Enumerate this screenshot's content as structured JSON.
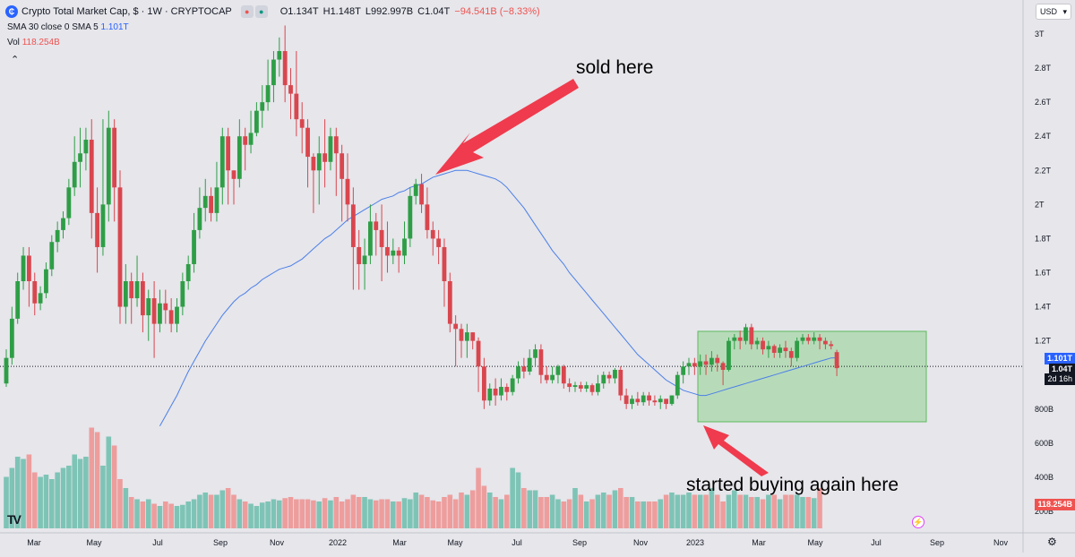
{
  "header": {
    "logo_icon": "cryptocap-logo-icon",
    "symbol": "Crypto Total Market Cap, $ · 1W · CRYPTOCAP",
    "open": "O1.134T",
    "high": "H1.148T",
    "low": "L992.997B",
    "close": "C1.04T",
    "change": "−94.541B (−8.33%)"
  },
  "indicators": {
    "sma_label": "SMA 30 close 0 SMA 5",
    "sma_value": "1.101T",
    "vol_label": "Vol",
    "vol_value": "118.254B"
  },
  "currency": "USD",
  "price_tags": {
    "sma": "1.101T",
    "close": "1.04T",
    "countdown": "2d 16h",
    "volume": "118.254B"
  },
  "annotations": {
    "top_text": "sold here",
    "bottom_text": "started buying again here"
  },
  "colors": {
    "up": "#2e9e46",
    "down": "#d9464e",
    "up_vol": "#7ec4b6",
    "down_vol": "#ee9d9d",
    "sma": "#4c7fe8",
    "arrow": "#ef3b4d",
    "box": "#8fd18f"
  },
  "chart_data": {
    "type": "candlestick",
    "title": "Crypto Total Market Cap, $ · 1W · CRYPTOCAP",
    "x_ticks": [
      "Mar",
      "May",
      "Jul",
      "Sep",
      "Nov",
      "2022",
      "Mar",
      "May",
      "Jul",
      "Sep",
      "Nov",
      "2023",
      "Mar",
      "May",
      "Jul",
      "Sep",
      "Nov"
    ],
    "y_ticks": [
      "3T",
      "2.8T",
      "2.6T",
      "2.4T",
      "2.2T",
      "2T",
      "1.8T",
      "1.6T",
      "1.4T",
      "1.2T",
      "800B",
      "600B",
      "400B",
      "200B"
    ],
    "y_range": [
      0.2,
      3.0
    ],
    "y_unit": "T",
    "candles": [
      [
        0.95,
        1.1,
        0.93,
        1.15
      ],
      [
        1.1,
        1.33,
        1.06,
        1.4
      ],
      [
        1.33,
        1.55,
        1.3,
        1.6
      ],
      [
        1.55,
        1.7,
        1.5,
        1.75
      ],
      [
        1.7,
        1.55,
        1.4,
        1.75
      ],
      [
        1.55,
        1.42,
        1.35,
        1.6
      ],
      [
        1.42,
        1.48,
        1.38,
        1.52
      ],
      [
        1.48,
        1.62,
        1.45,
        1.66
      ],
      [
        1.62,
        1.78,
        1.58,
        1.82
      ],
      [
        1.78,
        1.85,
        1.72,
        1.9
      ],
      [
        1.85,
        1.92,
        1.8,
        1.96
      ],
      [
        1.92,
        2.1,
        1.88,
        2.15
      ],
      [
        2.1,
        2.25,
        2.05,
        2.4
      ],
      [
        2.25,
        2.3,
        2.1,
        2.45
      ],
      [
        2.3,
        2.38,
        2.2,
        2.45
      ],
      [
        2.38,
        1.95,
        1.8,
        2.5
      ],
      [
        1.95,
        1.75,
        1.6,
        2.1
      ],
      [
        1.75,
        2.0,
        1.7,
        2.5
      ],
      [
        2.0,
        2.45,
        1.9,
        2.55
      ],
      [
        2.45,
        2.1,
        1.9,
        2.5
      ],
      [
        2.1,
        1.4,
        1.3,
        2.2
      ],
      [
        1.4,
        1.55,
        1.3,
        1.65
      ],
      [
        1.55,
        1.45,
        1.3,
        1.6
      ],
      [
        1.45,
        1.55,
        1.4,
        1.7
      ],
      [
        1.55,
        1.35,
        1.25,
        1.6
      ],
      [
        1.35,
        1.45,
        1.2,
        1.5
      ],
      [
        1.45,
        1.3,
        1.1,
        1.55
      ],
      [
        1.3,
        1.42,
        1.25,
        1.5
      ],
      [
        1.42,
        1.38,
        1.3,
        1.5
      ],
      [
        1.38,
        1.3,
        1.25,
        1.45
      ],
      [
        1.3,
        1.4,
        1.25,
        1.45
      ],
      [
        1.4,
        1.55,
        1.35,
        1.6
      ],
      [
        1.55,
        1.65,
        1.5,
        1.7
      ],
      [
        1.65,
        1.85,
        1.6,
        1.95
      ],
      [
        1.85,
        1.98,
        1.8,
        2.1
      ],
      [
        1.98,
        2.05,
        1.9,
        2.15
      ],
      [
        2.05,
        1.95,
        1.9,
        2.1
      ],
      [
        1.95,
        2.1,
        1.9,
        2.25
      ],
      [
        2.1,
        2.4,
        2.0,
        2.45
      ],
      [
        2.4,
        2.2,
        2.0,
        2.45
      ],
      [
        2.2,
        2.15,
        2.0,
        2.2
      ],
      [
        2.15,
        2.4,
        2.1,
        2.5
      ],
      [
        2.4,
        2.35,
        2.2,
        2.45
      ],
      [
        2.35,
        2.42,
        2.3,
        2.55
      ],
      [
        2.42,
        2.55,
        2.4,
        2.6
      ],
      [
        2.55,
        2.6,
        2.45,
        2.7
      ],
      [
        2.6,
        2.7,
        2.55,
        2.85
      ],
      [
        2.7,
        2.85,
        2.6,
        2.9
      ],
      [
        2.85,
        2.9,
        2.75,
        2.98
      ],
      [
        2.9,
        2.7,
        2.6,
        3.05
      ],
      [
        2.7,
        2.65,
        2.5,
        2.8
      ],
      [
        2.65,
        2.5,
        2.4,
        2.9
      ],
      [
        2.5,
        2.45,
        2.3,
        2.6
      ],
      [
        2.45,
        2.28,
        2.1,
        2.5
      ],
      [
        2.28,
        2.2,
        1.95,
        2.3
      ],
      [
        2.2,
        2.3,
        2.0,
        2.4
      ],
      [
        2.3,
        2.25,
        2.1,
        2.5
      ],
      [
        2.25,
        2.4,
        2.2,
        2.45
      ],
      [
        2.4,
        2.3,
        2.05,
        2.45
      ],
      [
        2.3,
        2.15,
        1.9,
        2.35
      ],
      [
        2.15,
        2.0,
        1.9,
        2.3
      ],
      [
        2.0,
        1.75,
        1.5,
        2.1
      ],
      [
        1.75,
        1.65,
        1.5,
        1.85
      ],
      [
        1.65,
        1.7,
        1.5,
        1.8
      ],
      [
        1.7,
        1.9,
        1.65,
        2.0
      ],
      [
        1.9,
        1.85,
        1.7,
        1.95
      ],
      [
        1.85,
        1.75,
        1.55,
        2.0
      ],
      [
        1.75,
        1.7,
        1.6,
        1.9
      ],
      [
        1.7,
        1.73,
        1.65,
        1.8
      ],
      [
        1.73,
        1.7,
        1.6,
        1.75
      ],
      [
        1.7,
        1.8,
        1.65,
        1.9
      ],
      [
        1.8,
        2.05,
        1.75,
        2.1
      ],
      [
        2.05,
        2.12,
        2.0,
        2.15
      ],
      [
        2.12,
        2.0,
        1.95,
        2.18
      ],
      [
        2.0,
        1.85,
        1.8,
        2.1
      ],
      [
        1.85,
        1.8,
        1.7,
        1.9
      ],
      [
        1.8,
        1.75,
        1.65,
        1.85
      ],
      [
        1.75,
        1.55,
        1.4,
        1.8
      ],
      [
        1.55,
        1.3,
        1.25,
        1.6
      ],
      [
        1.3,
        1.27,
        1.05,
        1.35
      ],
      [
        1.27,
        1.2,
        1.1,
        1.3
      ],
      [
        1.2,
        1.25,
        1.1,
        1.3
      ],
      [
        1.25,
        1.2,
        1.15,
        1.25
      ],
      [
        1.2,
        1.05,
        0.9,
        1.22
      ],
      [
        1.05,
        0.85,
        0.8,
        1.1
      ],
      [
        0.85,
        0.92,
        0.82,
        0.95
      ],
      [
        0.92,
        0.88,
        0.82,
        0.98
      ],
      [
        0.88,
        0.93,
        0.85,
        0.98
      ],
      [
        0.93,
        0.9,
        0.85,
        0.95
      ],
      [
        0.9,
        0.98,
        0.88,
        1.0
      ],
      [
        0.98,
        1.05,
        0.95,
        1.08
      ],
      [
        1.05,
        1.02,
        0.98,
        1.1
      ],
      [
        1.02,
        1.1,
        1.0,
        1.15
      ],
      [
        1.1,
        1.15,
        1.05,
        1.18
      ],
      [
        1.15,
        1.0,
        0.95,
        1.18
      ],
      [
        1.0,
        0.97,
        0.95,
        1.05
      ],
      [
        0.97,
        1.0,
        0.95,
        1.05
      ],
      [
        1.0,
        1.05,
        0.95,
        1.06
      ],
      [
        1.05,
        0.95,
        0.92,
        1.06
      ],
      [
        0.95,
        0.93,
        0.9,
        0.98
      ],
      [
        0.93,
        0.94,
        0.9,
        0.96
      ],
      [
        0.94,
        0.92,
        0.9,
        0.96
      ],
      [
        0.92,
        0.94,
        0.9,
        0.96
      ],
      [
        0.94,
        0.9,
        0.88,
        0.95
      ],
      [
        0.9,
        0.95,
        0.88,
        1.0
      ],
      [
        0.95,
        1.0,
        0.92,
        1.02
      ],
      [
        1.0,
        0.98,
        0.95,
        1.02
      ],
      [
        0.98,
        1.03,
        0.95,
        1.04
      ],
      [
        1.03,
        0.88,
        0.85,
        1.05
      ],
      [
        0.88,
        0.83,
        0.8,
        0.92
      ],
      [
        0.83,
        0.86,
        0.8,
        0.88
      ],
      [
        0.86,
        0.84,
        0.82,
        0.9
      ],
      [
        0.84,
        0.88,
        0.82,
        0.9
      ],
      [
        0.88,
        0.85,
        0.82,
        0.9
      ],
      [
        0.85,
        0.84,
        0.82,
        0.88
      ],
      [
        0.84,
        0.86,
        0.8,
        0.88
      ],
      [
        0.86,
        0.83,
        0.8,
        0.86
      ],
      [
        0.83,
        0.88,
        0.82,
        0.88
      ],
      [
        0.88,
        1.0,
        0.86,
        1.02
      ],
      [
        1.0,
        1.05,
        0.95,
        1.08
      ],
      [
        1.05,
        1.07,
        1.0,
        1.1
      ],
      [
        1.07,
        1.05,
        1.0,
        1.1
      ],
      [
        1.05,
        1.08,
        1.0,
        1.12
      ],
      [
        1.08,
        1.06,
        1.0,
        1.12
      ],
      [
        1.06,
        1.1,
        1.02,
        1.14
      ],
      [
        1.1,
        1.07,
        1.02,
        1.12
      ],
      [
        1.07,
        1.03,
        0.94,
        1.08
      ],
      [
        1.03,
        1.2,
        1.02,
        1.22
      ],
      [
        1.2,
        1.22,
        1.15,
        1.24
      ],
      [
        1.22,
        1.2,
        1.15,
        1.26
      ],
      [
        1.2,
        1.28,
        1.18,
        1.3
      ],
      [
        1.28,
        1.18,
        1.15,
        1.3
      ],
      [
        1.18,
        1.2,
        1.15,
        1.22
      ],
      [
        1.2,
        1.15,
        1.12,
        1.22
      ],
      [
        1.15,
        1.17,
        1.1,
        1.2
      ],
      [
        1.17,
        1.13,
        1.1,
        1.18
      ],
      [
        1.13,
        1.16,
        1.1,
        1.18
      ],
      [
        1.16,
        1.14,
        1.1,
        1.2
      ],
      [
        1.14,
        1.1,
        1.05,
        1.16
      ],
      [
        1.1,
        1.2,
        1.08,
        1.22
      ],
      [
        1.2,
        1.22,
        1.18,
        1.24
      ],
      [
        1.22,
        1.2,
        1.18,
        1.24
      ],
      [
        1.2,
        1.22,
        1.18,
        1.25
      ],
      [
        1.22,
        1.2,
        1.15,
        1.24
      ],
      [
        1.2,
        1.18,
        1.15,
        1.22
      ],
      [
        1.18,
        1.17,
        1.15,
        1.2
      ],
      [
        1.134,
        1.04,
        0.993,
        1.148
      ]
    ],
    "volume": [
      380,
      420,
      470,
      460,
      480,
      400,
      380,
      390,
      370,
      400,
      420,
      430,
      480,
      460,
      470,
      600,
      580,
      430,
      560,
      520,
      370,
      330,
      290,
      280,
      270,
      280,
      260,
      250,
      270,
      260,
      250,
      255,
      270,
      280,
      300,
      310,
      300,
      300,
      320,
      330,
      300,
      280,
      270,
      260,
      250,
      265,
      270,
      280,
      275,
      285,
      290,
      280,
      280,
      280,
      275,
      270,
      285,
      275,
      290,
      270,
      280,
      300,
      290,
      290,
      280,
      275,
      280,
      280,
      270,
      270,
      285,
      280,
      310,
      300,
      290,
      275,
      270,
      290,
      300,
      280,
      310,
      300,
      320,
      420,
      340,
      310,
      290,
      280,
      300,
      420,
      400,
      330,
      320,
      320,
      290,
      290,
      300,
      280,
      270,
      280,
      330,
      300,
      270,
      280,
      300,
      310,
      300,
      320,
      330,
      290,
      290,
      270,
      270,
      270,
      270,
      280,
      300,
      310,
      300,
      300,
      310,
      300,
      300,
      300,
      330,
      300,
      270,
      300,
      320,
      300,
      300,
      290,
      290,
      280,
      300,
      300,
      280,
      300,
      300,
      300,
      290,
      290,
      285,
      330
    ],
    "sma30": [
      0.7,
      0.76,
      0.82,
      0.88,
      0.95,
      1.02,
      1.08,
      1.14,
      1.2,
      1.25,
      1.3,
      1.35,
      1.39,
      1.43,
      1.46,
      1.48,
      1.51,
      1.53,
      1.56,
      1.58,
      1.6,
      1.62,
      1.63,
      1.64,
      1.66,
      1.68,
      1.71,
      1.74,
      1.77,
      1.8,
      1.82,
      1.85,
      1.88,
      1.91,
      1.93,
      1.95,
      1.97,
      1.99,
      2.01,
      2.03,
      2.04,
      2.05,
      2.07,
      2.08,
      2.1,
      2.11,
      2.12,
      2.14,
      2.16,
      2.17,
      2.18,
      2.19,
      2.2,
      2.2,
      2.2,
      2.19,
      2.18,
      2.17,
      2.16,
      2.15,
      2.13,
      2.1,
      2.06,
      2.02,
      1.98,
      1.93,
      1.88,
      1.83,
      1.78,
      1.73,
      1.69,
      1.65,
      1.6,
      1.56,
      1.52,
      1.48,
      1.44,
      1.4,
      1.36,
      1.32,
      1.28,
      1.24,
      1.2,
      1.16,
      1.12,
      1.09,
      1.06,
      1.03,
      1.0,
      0.97,
      0.95,
      0.93,
      0.91,
      0.9,
      0.89,
      0.88,
      0.88,
      0.89,
      0.9,
      0.91,
      0.92,
      0.93,
      0.94,
      0.95,
      0.96,
      0.97,
      0.98,
      0.99,
      1.0,
      1.01,
      1.02,
      1.03,
      1.04,
      1.05,
      1.06,
      1.07,
      1.08,
      1.09,
      1.1,
      1.101
    ]
  }
}
